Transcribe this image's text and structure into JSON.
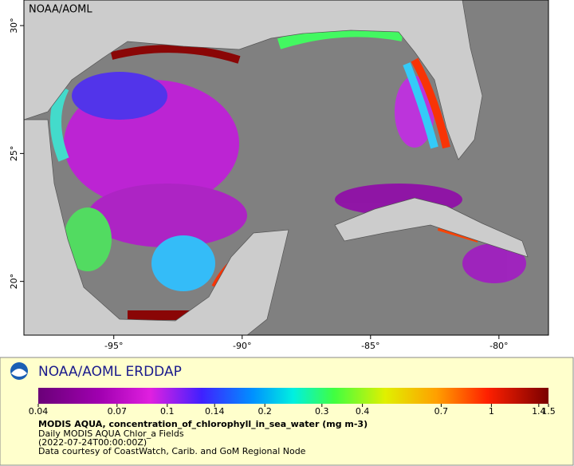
{
  "map": {
    "watermark": "NOAA/AOML",
    "xlim": [
      -98.5,
      -78.07
    ],
    "ylim": [
      17.9,
      31.0
    ],
    "xticks": [
      {
        "value": -95,
        "label": "-95°"
      },
      {
        "value": -90,
        "label": "-90°"
      },
      {
        "value": -85,
        "label": "-85°"
      },
      {
        "value": -80,
        "label": "-80°"
      }
    ],
    "yticks": [
      {
        "value": 20,
        "label": "20°"
      },
      {
        "value": 25,
        "label": "25°"
      },
      {
        "value": 30,
        "label": "30°"
      }
    ]
  },
  "legend": {
    "title": "NOAA/AOML ERDDAP",
    "colorbar": {
      "log_scale": true,
      "lim": [
        0.04,
        1.5
      ],
      "ticks": [
        0.04,
        0.07,
        0.1,
        0.14,
        0.2,
        0.3,
        0.4,
        0.7,
        1,
        1.4,
        1.5
      ]
    },
    "variable": "MODIS AQUA, concentration_of_chlorophyll_in_sea_water (mg m-3)",
    "dataset": "Daily MODIS AQUA Chlor_a Fields",
    "time": "(2022-07-24T00:00:00Z)",
    "credit": "Data courtesy of CoastWatch, Carib. and GoM Regional Node"
  }
}
